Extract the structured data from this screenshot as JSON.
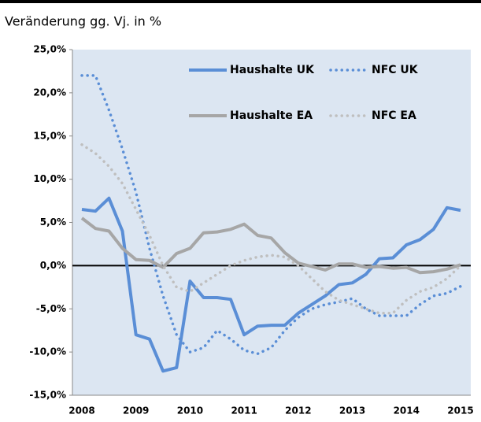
{
  "chart_data": {
    "type": "line",
    "subtitle": "Veränderung gg. Vj. in %",
    "categories": [
      "2008",
      null,
      null,
      null,
      "2009",
      null,
      null,
      null,
      "2010",
      null,
      null,
      null,
      "2011",
      null,
      null,
      null,
      "2012",
      null,
      null,
      null,
      "2013",
      null,
      null,
      null,
      "2014",
      null,
      null,
      null,
      "2015"
    ],
    "series": [
      {
        "name": "Haushalte UK",
        "color": "#5a8ed6",
        "dash": "solid",
        "values": [
          6.5,
          6.3,
          7.8,
          4.0,
          -8.0,
          -8.5,
          -12.2,
          -11.8,
          -1.8,
          -3.7,
          -3.7,
          -3.9,
          -8.0,
          -7.0,
          -6.9,
          -6.9,
          -5.5,
          -4.5,
          -3.5,
          -2.2,
          -2.0,
          -1.0,
          0.8,
          0.9,
          2.4,
          3.0,
          4.2,
          6.7,
          6.4
        ]
      },
      {
        "name": "NFC UK",
        "color": "#5a8ed6",
        "dash": "dotted",
        "values": [
          22.0,
          22.0,
          18.0,
          13.5,
          8.5,
          2.0,
          -3.5,
          -8.0,
          -10.0,
          -9.5,
          -7.5,
          -8.5,
          -9.8,
          -10.2,
          -9.5,
          -7.5,
          -6.0,
          -5.0,
          -4.5,
          -4.2,
          -3.8,
          -5.0,
          -5.8,
          -5.8,
          -5.8,
          -4.5,
          -3.5,
          -3.2,
          -2.4
        ]
      },
      {
        "name": "Haushalte EA",
        "color": "#a6a6a6",
        "dash": "solid",
        "values": [
          5.5,
          4.3,
          4.0,
          2.0,
          0.7,
          0.6,
          -0.2,
          1.4,
          2.0,
          3.8,
          3.9,
          4.2,
          4.8,
          3.5,
          3.2,
          1.5,
          0.3,
          -0.1,
          -0.5,
          0.2,
          0.2,
          -0.2,
          -0.1,
          -0.3,
          -0.2,
          -0.8,
          -0.7,
          -0.4,
          0.1
        ]
      },
      {
        "name": "NFC EA",
        "color": "#bfbfbf",
        "dash": "dotted",
        "values": [
          14.0,
          13.0,
          11.5,
          9.5,
          6.5,
          3.5,
          0.0,
          -2.5,
          -3.0,
          -2.0,
          -1.0,
          0.0,
          0.6,
          1.0,
          1.2,
          1.0,
          0.0,
          -1.5,
          -3.0,
          -4.0,
          -4.5,
          -5.0,
          -5.5,
          -5.5,
          -4.0,
          -3.0,
          -2.5,
          -1.5,
          0.0
        ]
      }
    ],
    "ylim": [
      -15,
      25
    ],
    "yticks": [
      {
        "value": 25,
        "label": "25,0%"
      },
      {
        "value": 20,
        "label": "20,0%"
      },
      {
        "value": 15,
        "label": "15,0%"
      },
      {
        "value": 10,
        "label": "10,0%"
      },
      {
        "value": 5,
        "label": "5,0%"
      },
      {
        "value": 0,
        "label": "0,0%"
      },
      {
        "value": -5,
        "label": "-5,0%"
      },
      {
        "value": -10,
        "label": "-10,0%"
      },
      {
        "value": -15,
        "label": "-15,0%"
      }
    ],
    "background": "#dce6f2"
  }
}
